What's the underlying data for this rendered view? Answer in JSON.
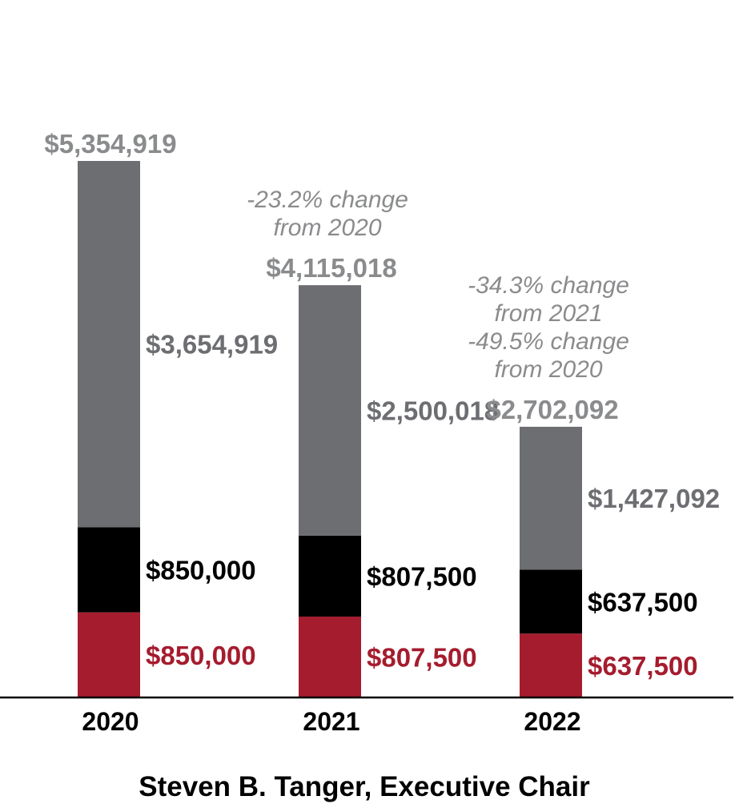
{
  "chart_data": {
    "type": "bar",
    "stacked": true,
    "title": "Steven B. Tanger, Executive Chair",
    "categories": [
      "2020",
      "2021",
      "2022"
    ],
    "series": [
      {
        "values": [
          850000,
          807500,
          637500
        ],
        "labels": [
          "$850,000",
          "$807,500",
          "$637,500"
        ],
        "color": "#a51c2e"
      },
      {
        "values": [
          850000,
          807500,
          637500
        ],
        "labels": [
          "$850,000",
          "$807,500",
          "$637,500"
        ],
        "color": "#000000"
      },
      {
        "values": [
          3654919,
          2500018,
          1427092
        ],
        "labels": [
          "$3,654,919",
          "$2,500,018",
          "$1,427,092"
        ],
        "color": "#6d6e71"
      }
    ],
    "totals": [
      5354919,
      4115018,
      2702092
    ],
    "total_labels": [
      "$5,354,919",
      "$4,115,018",
      "$2,702,092"
    ],
    "annotations": [
      [],
      [
        "-23.2% change",
        "from 2020"
      ],
      [
        "-34.3% change",
        "from 2021",
        "-49.5% change",
        "from 2020"
      ]
    ],
    "colors": {
      "total_label": "#8a8b8d",
      "annotation": "#8a8b8d"
    }
  }
}
